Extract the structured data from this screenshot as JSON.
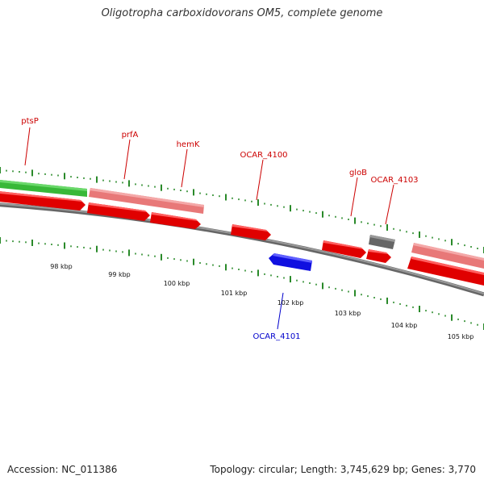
{
  "title": "Oligotropha carboxidovorans OM5, complete genome",
  "footer": {
    "accession": "Accession: NC_011386",
    "summary": "Topology: circular; Length: 3,745,629 bp; Genes: 3,770"
  },
  "colors": {
    "forward_cds": "#e00000",
    "reverse_cds": "#1010e0",
    "rna_gene": "#38b838",
    "pseudo_gene": "#f08888",
    "other_gene": "#707070",
    "backbone": "#888888",
    "tick": "#2a8a2a",
    "forward_label": "#cc0000",
    "reverse_label": "#0000cc"
  },
  "scale_labels": [
    "98 kbp",
    "99 kbp",
    "100 kbp",
    "101 kbp",
    "102 kbp",
    "103 kbp",
    "104 kbp",
    "105 kbp"
  ],
  "gene_labels": [
    {
      "text": "ptsP",
      "strand": "forward"
    },
    {
      "text": "prfA",
      "strand": "forward"
    },
    {
      "text": "hemK",
      "strand": "forward"
    },
    {
      "text": "OCAR_4100",
      "strand": "forward"
    },
    {
      "text": "gloB",
      "strand": "forward"
    },
    {
      "text": "OCAR_4103",
      "strand": "forward"
    },
    {
      "text": "OCAR_4101",
      "strand": "reverse"
    }
  ]
}
